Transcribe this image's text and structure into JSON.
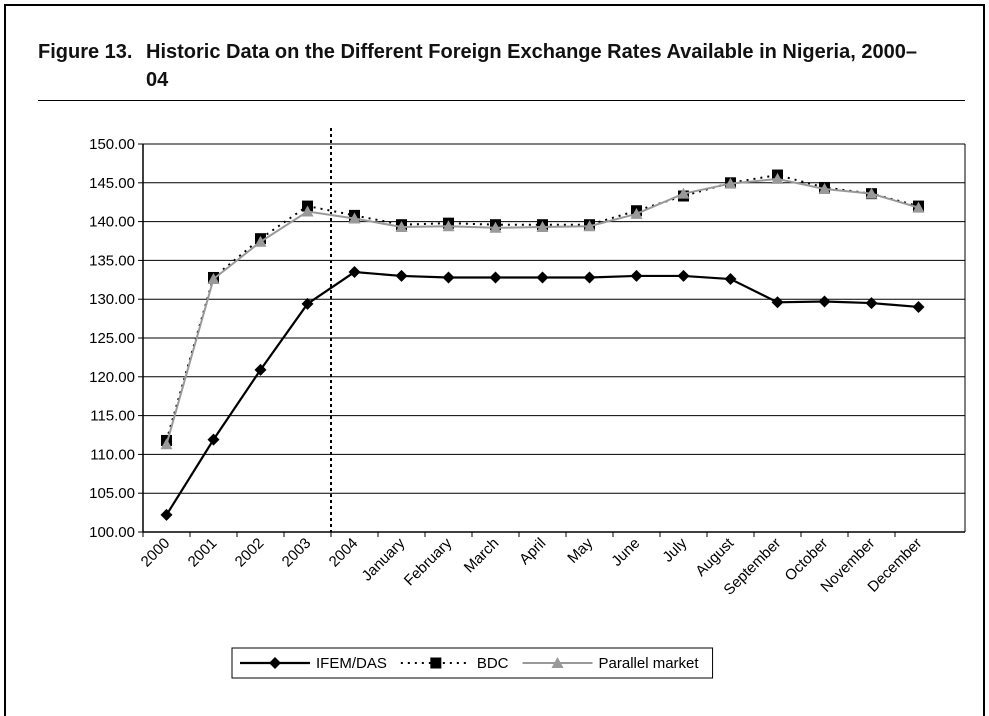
{
  "chart_data": {
    "type": "line",
    "figure_label": "Figure 13.",
    "title": "Historic Data on the Different Foreign Exchange Rates Available in Nigeria, 2000–04",
    "categories": [
      "2000",
      "2001",
      "2002",
      "2003",
      "2004",
      "January",
      "February",
      "March",
      "April",
      "May",
      "June",
      "July",
      "August",
      "September",
      "October",
      "November",
      "December"
    ],
    "series": [
      {
        "name": "IFEM/DAS",
        "color": "#000000",
        "values": [
          102.2,
          111.9,
          120.9,
          129.4,
          133.5,
          133.0,
          132.8,
          132.8,
          132.8,
          132.8,
          133.0,
          133.0,
          132.6,
          129.6,
          129.7,
          129.5,
          129.0
        ]
      },
      {
        "name": "BDC",
        "color": "#000000",
        "values": [
          111.8,
          132.8,
          137.8,
          142.0,
          140.8,
          139.6,
          139.8,
          139.6,
          139.6,
          139.6,
          141.4,
          143.3,
          145.0,
          146.0,
          144.4,
          143.6,
          142.0
        ]
      },
      {
        "name": "Parallel market",
        "color": "#999999",
        "values": [
          111.3,
          132.6,
          137.4,
          141.3,
          140.4,
          139.3,
          139.4,
          139.2,
          139.3,
          139.4,
          141.0,
          143.6,
          144.9,
          145.5,
          144.2,
          143.6,
          141.8
        ]
      }
    ],
    "ylim": [
      100,
      150
    ],
    "yticks": [
      {
        "value": 100,
        "label": "100.00"
      },
      {
        "value": 105,
        "label": "105.00"
      },
      {
        "value": 110,
        "label": "110.00"
      },
      {
        "value": 115,
        "label": "115.00"
      },
      {
        "value": 120,
        "label": "120.00"
      },
      {
        "value": 125,
        "label": "125.00"
      },
      {
        "value": 130,
        "label": "130.00"
      },
      {
        "value": 135,
        "label": "135.00"
      },
      {
        "value": 140,
        "label": "140.00"
      },
      {
        "value": 145,
        "label": "145.00"
      },
      {
        "value": 150,
        "label": "150.00"
      }
    ],
    "grid": true,
    "legend": "bottom"
  }
}
